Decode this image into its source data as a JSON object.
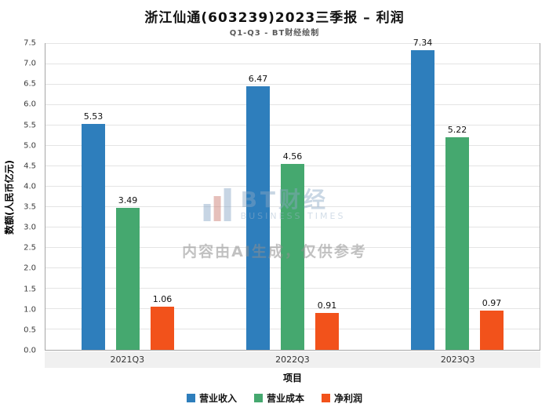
{
  "title": "浙江仙通(603239)2023三季报 – 利润",
  "subtitle": "Q1-Q3 - BT财经绘制",
  "chart_data": {
    "type": "bar",
    "categories": [
      "2021Q3",
      "2022Q3",
      "2023Q3"
    ],
    "series": [
      {
        "name": "营业收入",
        "color": "#2E7EBC",
        "values": [
          5.53,
          6.47,
          7.34
        ]
      },
      {
        "name": "营业成本",
        "color": "#45A86F",
        "values": [
          3.49,
          4.56,
          5.22
        ]
      },
      {
        "name": "净利润",
        "color": "#F2521B",
        "values": [
          1.06,
          0.91,
          0.97
        ]
      }
    ],
    "title": "浙江仙通(603239)2023三季报 – 利润",
    "xlabel": "项目",
    "ylabel": "数额(人民币亿元)",
    "ylim": [
      0,
      7.5
    ],
    "ytick_step": 0.5,
    "grid": true,
    "legend_position": "bottom"
  },
  "watermark": {
    "logo_text": "BT财经",
    "logo_subtext": "BUSINESS TIMES",
    "disclaimer": "内容由AI生成，仅供参考"
  }
}
